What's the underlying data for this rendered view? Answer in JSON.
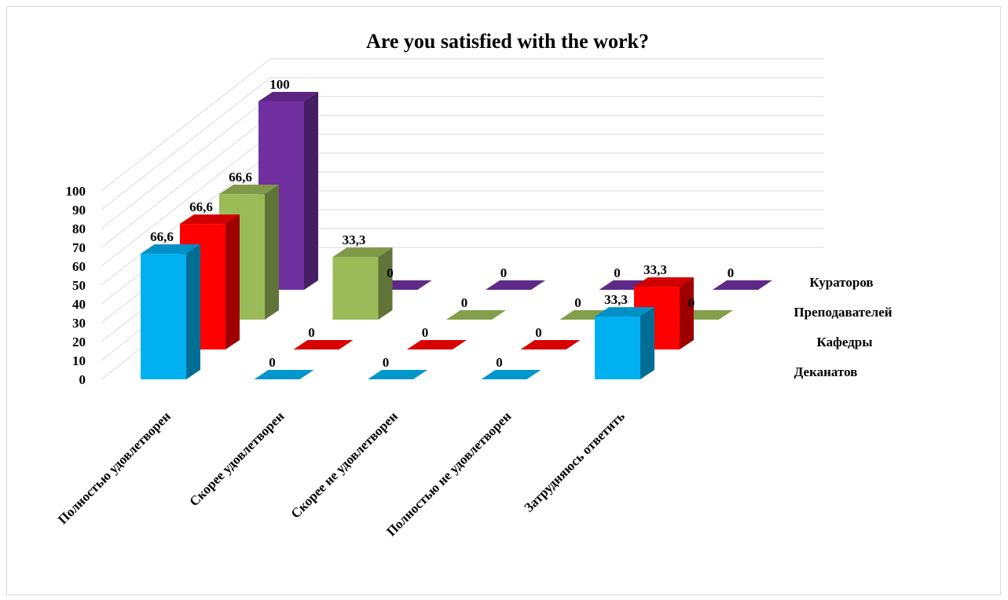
{
  "chart_data": {
    "type": "bar",
    "title": "Are you satisfied with the work?",
    "categories": [
      "Полностью удовлетворен",
      "Скорее удовлетворен",
      "Скорее не удовлетворен",
      "Полностью не удовлетворен",
      "Затрудняюсь ответить"
    ],
    "series": [
      {
        "name": "Деканатов",
        "values": [
          66.6,
          0,
          0,
          0,
          33.3
        ],
        "labels": [
          "66,6",
          "0",
          "0",
          "0",
          "33,3"
        ],
        "color": "#00b0f0"
      },
      {
        "name": "Кафедры",
        "values": [
          66.6,
          0,
          0,
          0,
          33.3
        ],
        "labels": [
          "66,6",
          "0",
          "0",
          "0",
          "33,3"
        ],
        "color": "#ff0000"
      },
      {
        "name": "Преподавателей",
        "values": [
          66.6,
          33.3,
          0,
          0,
          0
        ],
        "labels": [
          "66,6",
          "33,3",
          "0",
          "0",
          "0"
        ],
        "color": "#9bbb59"
      },
      {
        "name": "Кураторов",
        "values": [
          100,
          0,
          0,
          0,
          0
        ],
        "labels": [
          "100",
          "0",
          "0",
          "0",
          "0"
        ],
        "color": "#7030a0"
      }
    ],
    "ylim": [
      0,
      100
    ],
    "yticks": [
      "0",
      "10",
      "20",
      "30",
      "40",
      "50",
      "60",
      "70",
      "80",
      "90",
      "100"
    ],
    "projection": "3d-column",
    "grid": true
  }
}
